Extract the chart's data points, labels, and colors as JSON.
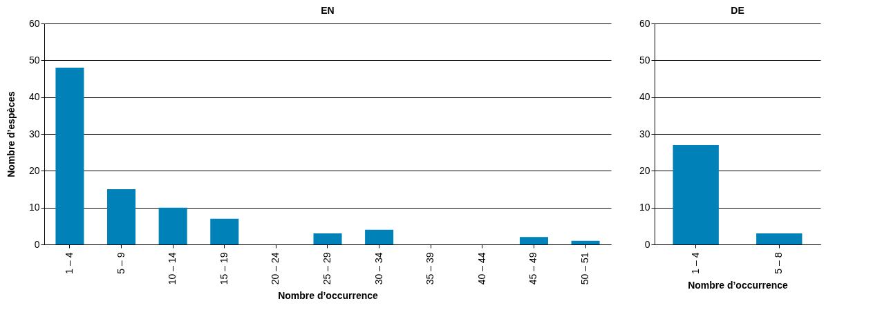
{
  "chart_data": [
    {
      "type": "bar",
      "title": "EN",
      "xlabel": "Nombre d’occurrence",
      "ylabel": "Nombre d’espèces",
      "categories": [
        "1 – 4",
        "5 – 9",
        "10 – 14",
        "15 – 19",
        "20 – 24",
        "25 – 29",
        "30 – 34",
        "35 – 39",
        "40 – 44",
        "45 – 49",
        "50 – 51"
      ],
      "values": [
        48,
        15,
        10,
        7,
        0,
        3,
        4,
        0,
        0,
        2,
        1
      ],
      "color": "#0081b8",
      "ylim": [
        0,
        60
      ],
      "yticks": [
        0,
        10,
        20,
        30,
        40,
        50,
        60
      ],
      "grid": "y"
    },
    {
      "type": "bar",
      "title": "DE",
      "xlabel": "Nombre d’occurrence",
      "categories": [
        "1 – 4",
        "5 – 8"
      ],
      "values": [
        27,
        3
      ],
      "color": "#0081b8",
      "ylim": [
        0,
        60
      ],
      "yticks": [
        0,
        10,
        20,
        30,
        40,
        50,
        60
      ],
      "grid": "y"
    }
  ]
}
